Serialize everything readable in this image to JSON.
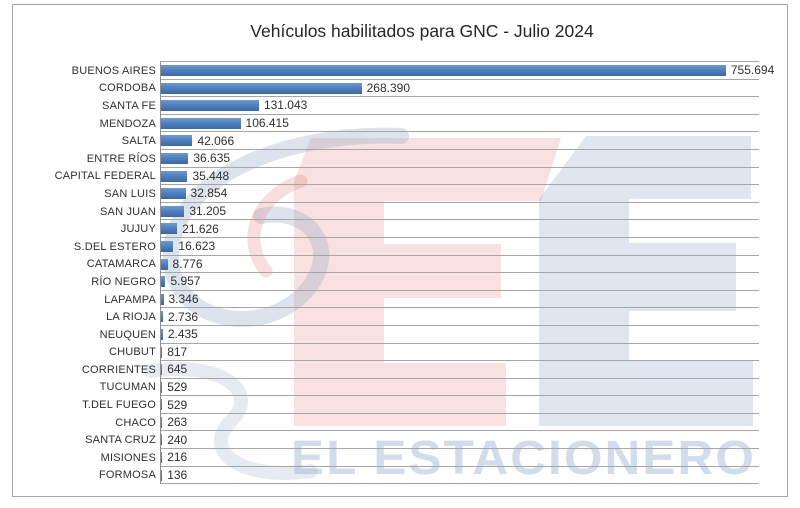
{
  "chart_data": {
    "type": "bar",
    "orientation": "horizontal",
    "title": "Vehículos habilitados para GNC - Julio 2024",
    "categories": [
      "BUENOS AIRES",
      "CORDOBA",
      "SANTA FE",
      "MENDOZA",
      "SALTA",
      "ENTRE RÍOS",
      "CAPITAL FEDERAL",
      "SAN LUIS",
      "SAN JUAN",
      "JUJUY",
      "S.DEL ESTERO",
      "CATAMARCA",
      "RÍO NEGRO",
      "LAPAMPA",
      "LA RIOJA",
      "NEUQUEN",
      "CHUBUT",
      "CORRIENTES",
      "TUCUMAN",
      "T.DEL FUEGO",
      "CHACO",
      "SANTA CRUZ",
      "MISIONES",
      "FORMOSA"
    ],
    "values": [
      755694,
      268390,
      131043,
      106415,
      42066,
      36635,
      35448,
      32854,
      31205,
      21626,
      16623,
      8776,
      5957,
      3346,
      2736,
      2435,
      817,
      645,
      529,
      529,
      263,
      240,
      216,
      136
    ],
    "value_labels": [
      "755.694",
      "268.390",
      "131.043",
      "106.415",
      "42.066",
      "36.635",
      "35.448",
      "32.854",
      "31.205",
      "21.626",
      "16.623",
      "8.776",
      "5.957",
      "3.346",
      "2.736",
      "2.435",
      "817",
      "645",
      "529",
      "529",
      "263",
      "240",
      "216",
      "136"
    ],
    "xlabel": "",
    "ylabel": "",
    "axis_max": 800000,
    "legend": "none",
    "grid": "category separator lines",
    "bar_color": "#4d7ebd",
    "bar_color_light": "#6f99d0",
    "bar_color_dark": "#3f689e",
    "gridline_color": "#a6a6a6",
    "frame_border_color": "#a6a6a6"
  },
  "watermark": {
    "wordmark": "EL ESTACIONERO",
    "monogram": "EE",
    "red_color": "#dd6a63",
    "blue_color": "#7896c2",
    "swirl_color": "#8ba3c4",
    "wordmark_color": "#8fa9cc"
  }
}
